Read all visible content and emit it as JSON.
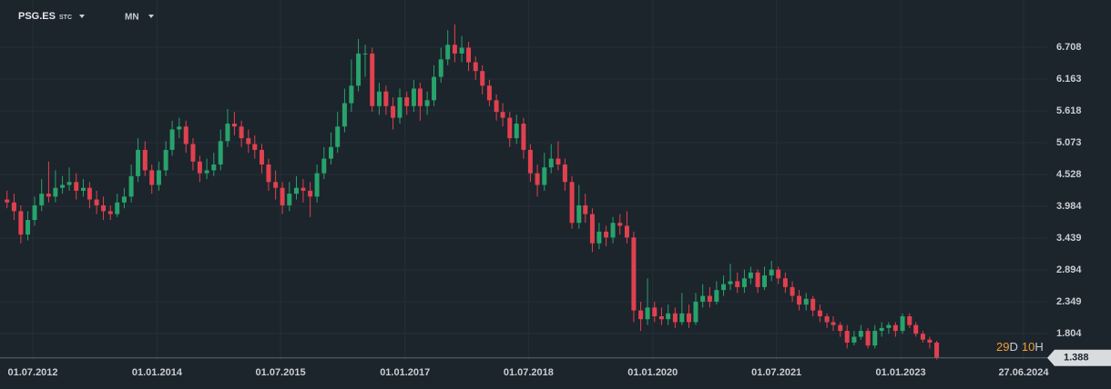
{
  "header": {
    "symbol": "PSG.ES",
    "symbol_tag": "STC",
    "timeframe": "MN"
  },
  "chart_data": {
    "type": "candlestick",
    "colors": {
      "up": "#27a36b",
      "down": "#e0414f"
    },
    "countdown": [
      "29",
      "D",
      "10",
      "H"
    ],
    "xlim": [
      "07.02.2012",
      "19.11.2024"
    ],
    "xticks": [
      "01.07.2012",
      "01.01.2014",
      "01.07.2015",
      "01.01.2017",
      "01.07.2018",
      "01.01.2020",
      "01.07.2021",
      "01.01.2023",
      "27.06.2024"
    ],
    "ylim": [
      1.353,
      7.517
    ],
    "yticks": [
      1.804,
      2.349,
      2.894,
      3.439,
      3.984,
      4.528,
      5.073,
      5.618,
      6.163,
      6.708
    ],
    "grid": true,
    "x": [
      "01.03.2012",
      "01.04.2012",
      "01.05.2012",
      "01.06.2012",
      "01.07.2012",
      "01.08.2012",
      "01.09.2012",
      "01.10.2012",
      "01.11.2012",
      "01.12.2012",
      "01.01.2013",
      "01.02.2013",
      "01.03.2013",
      "01.04.2013",
      "01.05.2013",
      "01.06.2013",
      "01.07.2013",
      "01.08.2013",
      "01.09.2013",
      "01.10.2013",
      "01.11.2013",
      "01.12.2013",
      "01.01.2014",
      "01.02.2014",
      "01.03.2014",
      "01.04.2014",
      "01.05.2014",
      "01.06.2014",
      "01.07.2014",
      "01.08.2014",
      "01.09.2014",
      "01.10.2014",
      "01.11.2014",
      "01.12.2014",
      "01.01.2015",
      "01.02.2015",
      "01.03.2015",
      "01.04.2015",
      "01.05.2015",
      "01.06.2015",
      "01.07.2015",
      "01.08.2015",
      "01.09.2015",
      "01.10.2015",
      "01.11.2015",
      "01.12.2015",
      "01.01.2016",
      "01.02.2016",
      "01.03.2016",
      "01.04.2016",
      "01.05.2016",
      "01.06.2016",
      "01.07.2016",
      "01.08.2016",
      "01.09.2016",
      "01.10.2016",
      "01.11.2016",
      "01.12.2016",
      "01.01.2017",
      "01.02.2017",
      "01.03.2017",
      "01.04.2017",
      "01.05.2017",
      "01.06.2017",
      "01.07.2017",
      "01.08.2017",
      "01.09.2017",
      "01.10.2017",
      "01.11.2017",
      "01.12.2017",
      "01.01.2018",
      "01.02.2018",
      "01.03.2018",
      "01.04.2018",
      "01.05.2018",
      "01.06.2018",
      "01.07.2018",
      "01.08.2018",
      "01.09.2018",
      "01.10.2018",
      "01.11.2018",
      "01.12.2018",
      "01.01.2019",
      "01.02.2019",
      "01.03.2019",
      "01.04.2019",
      "01.05.2019",
      "01.06.2019",
      "01.07.2019",
      "01.08.2019",
      "01.09.2019",
      "01.10.2019",
      "01.11.2019",
      "01.12.2019",
      "01.01.2020",
      "01.02.2020",
      "01.03.2020",
      "01.04.2020",
      "01.05.2020",
      "01.06.2020",
      "01.07.2020",
      "01.08.2020",
      "01.09.2020",
      "01.10.2020",
      "01.11.2020",
      "01.12.2020",
      "01.01.2021",
      "01.02.2021",
      "01.03.2021",
      "01.04.2021",
      "01.05.2021",
      "01.06.2021",
      "01.07.2021",
      "01.08.2021",
      "01.09.2021",
      "01.10.2021",
      "01.11.2021",
      "01.12.2021",
      "01.01.2022",
      "01.02.2022",
      "01.03.2022",
      "01.04.2022",
      "01.05.2022",
      "01.06.2022",
      "01.07.2022",
      "01.08.2022",
      "01.09.2022",
      "01.10.2022",
      "01.11.2022",
      "01.12.2022",
      "01.01.2023",
      "01.02.2023",
      "01.03.2023",
      "01.04.2023",
      "01.05.2023",
      "01.06.2023"
    ],
    "ohlc": [
      [
        4.1,
        4.25,
        3.95,
        4.05
      ],
      [
        4.05,
        4.2,
        3.75,
        3.9
      ],
      [
        3.9,
        4.0,
        3.35,
        3.5
      ],
      [
        3.5,
        3.9,
        3.4,
        3.75
      ],
      [
        3.75,
        4.15,
        3.65,
        4.0
      ],
      [
        4.0,
        4.45,
        3.9,
        4.2
      ],
      [
        4.2,
        4.75,
        4.05,
        4.15
      ],
      [
        4.15,
        4.6,
        4.05,
        4.3
      ],
      [
        4.3,
        4.5,
        4.2,
        4.35
      ],
      [
        4.35,
        4.65,
        4.25,
        4.4
      ],
      [
        4.4,
        4.55,
        4.1,
        4.25
      ],
      [
        4.25,
        4.45,
        4.15,
        4.3
      ],
      [
        4.3,
        4.4,
        3.95,
        4.1
      ],
      [
        4.1,
        4.25,
        3.85,
        4.0
      ],
      [
        4.0,
        4.15,
        3.75,
        3.9
      ],
      [
        3.9,
        4.0,
        3.75,
        3.85
      ],
      [
        3.85,
        4.2,
        3.8,
        4.05
      ],
      [
        4.05,
        4.3,
        3.95,
        4.15
      ],
      [
        4.15,
        4.7,
        4.05,
        4.5
      ],
      [
        4.5,
        5.15,
        4.4,
        4.95
      ],
      [
        4.95,
        5.1,
        4.5,
        4.6
      ],
      [
        4.6,
        4.7,
        4.2,
        4.35
      ],
      [
        4.35,
        4.75,
        4.25,
        4.6
      ],
      [
        4.6,
        5.1,
        4.5,
        4.95
      ],
      [
        4.95,
        5.45,
        4.85,
        5.3
      ],
      [
        5.3,
        5.5,
        5.15,
        5.35
      ],
      [
        5.35,
        5.45,
        4.9,
        5.05
      ],
      [
        5.05,
        5.15,
        4.6,
        4.75
      ],
      [
        4.75,
        4.85,
        4.4,
        4.55
      ],
      [
        4.55,
        4.8,
        4.45,
        4.6
      ],
      [
        4.6,
        4.9,
        4.5,
        4.7
      ],
      [
        4.7,
        5.3,
        4.6,
        5.1
      ],
      [
        5.1,
        5.65,
        5.0,
        5.4
      ],
      [
        5.4,
        5.6,
        5.2,
        5.35
      ],
      [
        5.35,
        5.45,
        5.0,
        5.15
      ],
      [
        5.15,
        5.3,
        4.9,
        5.05
      ],
      [
        5.05,
        5.2,
        4.8,
        4.95
      ],
      [
        4.95,
        5.05,
        4.55,
        4.7
      ],
      [
        4.7,
        4.8,
        4.25,
        4.4
      ],
      [
        4.4,
        4.6,
        4.1,
        4.3
      ],
      [
        4.3,
        4.4,
        3.85,
        4.0
      ],
      [
        4.0,
        4.4,
        3.9,
        4.2
      ],
      [
        4.2,
        4.5,
        4.1,
        4.3
      ],
      [
        4.3,
        4.45,
        4.05,
        4.25
      ],
      [
        4.25,
        4.4,
        3.8,
        4.15
      ],
      [
        4.15,
        4.7,
        4.05,
        4.55
      ],
      [
        4.55,
        5.0,
        4.45,
        4.8
      ],
      [
        4.8,
        5.25,
        4.7,
        5.0
      ],
      [
        5.0,
        5.6,
        4.9,
        5.35
      ],
      [
        5.35,
        6.0,
        5.25,
        5.75
      ],
      [
        5.75,
        6.5,
        5.6,
        6.05
      ],
      [
        6.05,
        6.85,
        5.95,
        6.6
      ],
      [
        6.6,
        6.75,
        6.2,
        6.6
      ],
      [
        6.6,
        6.7,
        5.6,
        5.7
      ],
      [
        5.7,
        6.1,
        5.55,
        5.95
      ],
      [
        5.95,
        6.05,
        5.55,
        5.7
      ],
      [
        5.7,
        5.85,
        5.3,
        5.5
      ],
      [
        5.5,
        6.0,
        5.4,
        5.85
      ],
      [
        5.85,
        5.95,
        5.55,
        5.7
      ],
      [
        5.7,
        6.15,
        5.6,
        6.0
      ],
      [
        6.0,
        6.1,
        5.45,
        5.7
      ],
      [
        5.7,
        5.95,
        5.55,
        5.8
      ],
      [
        5.8,
        6.4,
        5.7,
        6.2
      ],
      [
        6.2,
        6.7,
        6.1,
        6.5
      ],
      [
        6.5,
        7.0,
        6.4,
        6.75
      ],
      [
        6.75,
        7.1,
        6.45,
        6.6
      ],
      [
        6.6,
        6.9,
        6.45,
        6.7
      ],
      [
        6.7,
        6.8,
        6.3,
        6.45
      ],
      [
        6.45,
        6.55,
        6.15,
        6.3
      ],
      [
        6.3,
        6.4,
        5.9,
        6.05
      ],
      [
        6.05,
        6.15,
        5.7,
        5.8
      ],
      [
        5.8,
        5.9,
        5.45,
        5.6
      ],
      [
        5.6,
        5.75,
        5.35,
        5.5
      ],
      [
        5.5,
        5.6,
        5.0,
        5.15
      ],
      [
        5.15,
        5.55,
        5.05,
        5.4
      ],
      [
        5.4,
        5.5,
        4.8,
        4.95
      ],
      [
        4.95,
        5.05,
        4.4,
        4.55
      ],
      [
        4.55,
        4.7,
        4.15,
        4.35
      ],
      [
        4.35,
        4.9,
        4.25,
        4.65
      ],
      [
        4.65,
        5.05,
        4.55,
        4.8
      ],
      [
        4.8,
        5.1,
        4.6,
        4.7
      ],
      [
        4.7,
        4.8,
        4.25,
        4.4
      ],
      [
        4.4,
        4.5,
        3.6,
        3.7
      ],
      [
        3.7,
        4.35,
        3.6,
        4.0
      ],
      [
        4.0,
        4.2,
        3.7,
        3.85
      ],
      [
        3.85,
        3.95,
        3.2,
        3.35
      ],
      [
        3.35,
        3.7,
        3.25,
        3.55
      ],
      [
        3.55,
        3.65,
        3.3,
        3.45
      ],
      [
        3.45,
        3.8,
        3.35,
        3.7
      ],
      [
        3.7,
        3.85,
        3.5,
        3.65
      ],
      [
        3.65,
        3.9,
        3.35,
        3.45
      ],
      [
        3.45,
        3.55,
        2.0,
        2.2
      ],
      [
        2.2,
        2.35,
        1.85,
        2.05
      ],
      [
        2.05,
        2.75,
        1.95,
        2.25
      ],
      [
        2.25,
        2.35,
        2.0,
        2.1
      ],
      [
        2.1,
        2.25,
        1.95,
        2.05
      ],
      [
        2.05,
        2.3,
        1.95,
        2.15
      ],
      [
        2.15,
        2.25,
        1.9,
        2.0
      ],
      [
        2.0,
        2.5,
        1.95,
        2.15
      ],
      [
        2.15,
        2.3,
        1.9,
        2.0
      ],
      [
        2.0,
        2.5,
        1.95,
        2.35
      ],
      [
        2.35,
        2.65,
        2.25,
        2.45
      ],
      [
        2.45,
        2.6,
        2.25,
        2.35
      ],
      [
        2.35,
        2.7,
        2.3,
        2.55
      ],
      [
        2.55,
        2.8,
        2.45,
        2.65
      ],
      [
        2.65,
        3.0,
        2.55,
        2.7
      ],
      [
        2.7,
        2.85,
        2.5,
        2.6
      ],
      [
        2.6,
        2.9,
        2.5,
        2.75
      ],
      [
        2.75,
        2.95,
        2.65,
        2.85
      ],
      [
        2.85,
        2.9,
        2.5,
        2.6
      ],
      [
        2.6,
        2.95,
        2.55,
        2.8
      ],
      [
        2.8,
        3.05,
        2.7,
        2.9
      ],
      [
        2.9,
        2.95,
        2.65,
        2.75
      ],
      [
        2.75,
        2.85,
        2.5,
        2.6
      ],
      [
        2.6,
        2.7,
        2.35,
        2.45
      ],
      [
        2.45,
        2.55,
        2.2,
        2.3
      ],
      [
        2.3,
        2.5,
        2.2,
        2.4
      ],
      [
        2.4,
        2.45,
        2.1,
        2.2
      ],
      [
        2.2,
        2.3,
        2.0,
        2.1
      ],
      [
        2.1,
        2.15,
        1.9,
        2.0
      ],
      [
        2.0,
        2.1,
        1.85,
        1.95
      ],
      [
        1.95,
        2.0,
        1.75,
        1.85
      ],
      [
        1.85,
        1.95,
        1.55,
        1.65
      ],
      [
        1.65,
        1.85,
        1.6,
        1.75
      ],
      [
        1.75,
        1.95,
        1.7,
        1.85
      ],
      [
        1.85,
        1.9,
        1.55,
        1.6
      ],
      [
        1.6,
        1.95,
        1.55,
        1.85
      ],
      [
        1.85,
        2.0,
        1.75,
        1.9
      ],
      [
        1.9,
        2.0,
        1.8,
        1.95
      ],
      [
        1.95,
        2.0,
        1.75,
        1.85
      ],
      [
        1.85,
        2.15,
        1.8,
        2.1
      ],
      [
        2.1,
        2.15,
        1.9,
        1.95
      ],
      [
        1.95,
        2.0,
        1.75,
        1.8
      ],
      [
        1.8,
        1.85,
        1.65,
        1.7
      ],
      [
        1.7,
        1.75,
        1.55,
        1.65
      ],
      [
        1.65,
        1.68,
        1.36,
        1.388
      ]
    ]
  }
}
